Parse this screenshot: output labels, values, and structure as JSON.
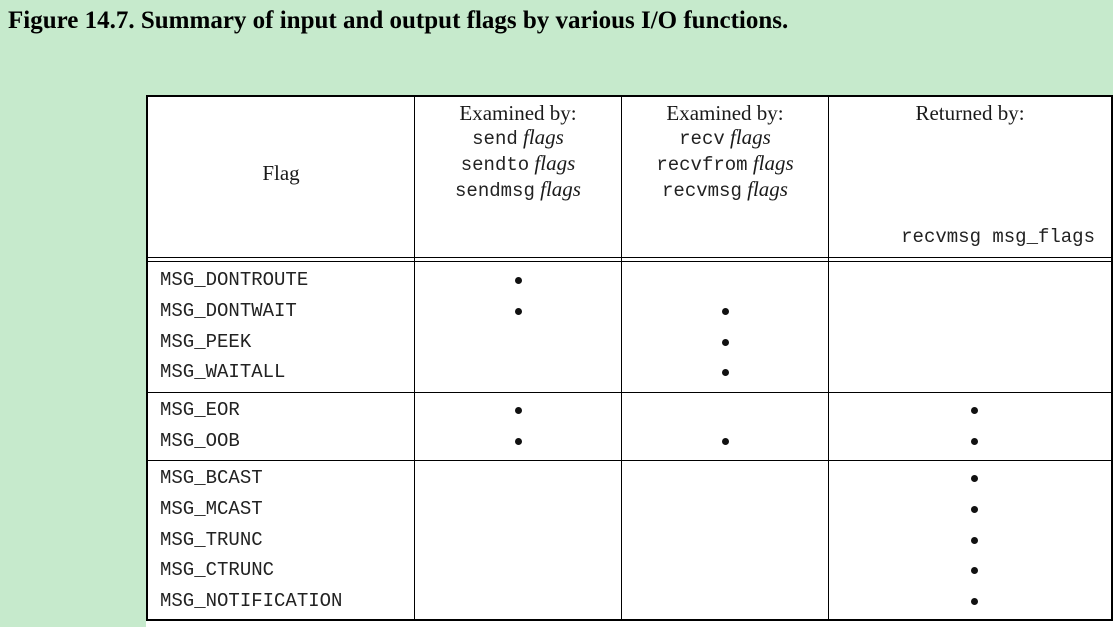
{
  "caption": "Figure 14.7. Summary of input and output flags by various I/O functions.",
  "header": {
    "flag": "Flag",
    "send": {
      "title": "Examined by:",
      "lines": [
        {
          "fn": "send",
          "arg": "flags"
        },
        {
          "fn": "sendto",
          "arg": "flags"
        },
        {
          "fn": "sendmsg",
          "arg": "flags"
        }
      ]
    },
    "recv": {
      "title": "Examined by:",
      "lines": [
        {
          "fn": "recv",
          "arg": "flags"
        },
        {
          "fn": "recvfrom",
          "arg": "flags"
        },
        {
          "fn": "recvmsg",
          "arg": "flags"
        }
      ]
    },
    "ret": {
      "title": "Returned by:",
      "line": "recvmsg msg_flags"
    }
  },
  "dot_symbol": "•",
  "groups": [
    {
      "rows": [
        {
          "flag": "MSG_DONTROUTE",
          "send": true,
          "recv": false,
          "ret": false
        },
        {
          "flag": "MSG_DONTWAIT",
          "send": true,
          "recv": true,
          "ret": false
        },
        {
          "flag": "MSG_PEEK",
          "send": false,
          "recv": true,
          "ret": false
        },
        {
          "flag": "MSG_WAITALL",
          "send": false,
          "recv": true,
          "ret": false
        }
      ]
    },
    {
      "rows": [
        {
          "flag": "MSG_EOR",
          "send": true,
          "recv": false,
          "ret": true
        },
        {
          "flag": "MSG_OOB",
          "send": true,
          "recv": true,
          "ret": true
        }
      ]
    },
    {
      "rows": [
        {
          "flag": "MSG_BCAST",
          "send": false,
          "recv": false,
          "ret": true
        },
        {
          "flag": "MSG_MCAST",
          "send": false,
          "recv": false,
          "ret": true
        },
        {
          "flag": "MSG_TRUNC",
          "send": false,
          "recv": false,
          "ret": true
        },
        {
          "flag": "MSG_CTRUNC",
          "send": false,
          "recv": false,
          "ret": true
        },
        {
          "flag": "MSG_NOTIFICATION",
          "send": false,
          "recv": false,
          "ret": true
        }
      ]
    }
  ]
}
